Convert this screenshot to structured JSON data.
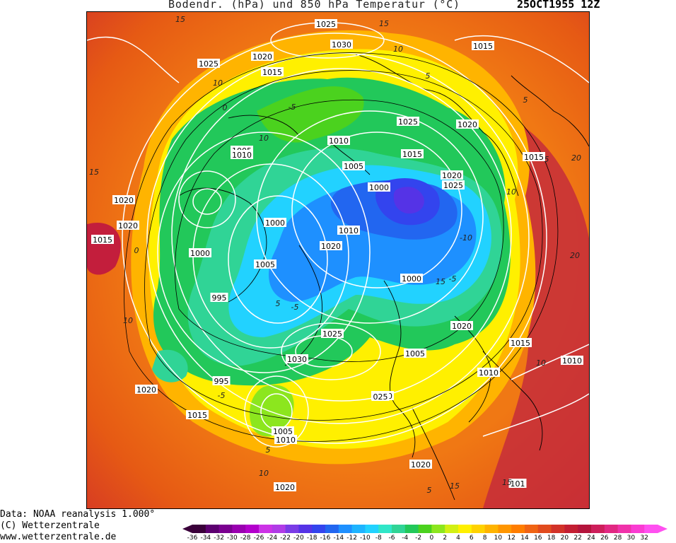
{
  "header": {
    "title": "Bodendr. (hPa) und 850 hPa Temperatur (°C)",
    "date": "25OCT1955 12Z"
  },
  "credits": {
    "data_line": "Data: NOAA reanalysis 1.000°",
    "copyright": "(C) Wetterzentrale",
    "website": "www.wetterzentrale.de"
  },
  "legend": {
    "unit": "°C",
    "values": [
      -36,
      -34,
      -32,
      -30,
      -28,
      -26,
      -24,
      -22,
      -20,
      -18,
      -16,
      -14,
      -12,
      -10,
      -8,
      -6,
      -4,
      -2,
      0,
      2,
      4,
      6,
      8,
      10,
      12,
      14,
      16,
      18,
      20,
      22,
      24,
      26,
      28,
      30,
      32
    ],
    "colors": [
      "#3a003a",
      "#5c0070",
      "#7a0090",
      "#9900b0",
      "#b300cc",
      "#cc33e6",
      "#b03ce6",
      "#7a3ce6",
      "#5533e6",
      "#3344ee",
      "#2266f0",
      "#1e90ff",
      "#1eb4ff",
      "#22d2ff",
      "#30e6c8",
      "#30d496",
      "#22c85a",
      "#4bd21e",
      "#8ce61e",
      "#d2f014",
      "#fff000",
      "#ffd200",
      "#ffb400",
      "#ff9600",
      "#ff7d00",
      "#f06414",
      "#e14b1e",
      "#d23228",
      "#c31e32",
      "#b4143c",
      "#cd1e5a",
      "#e12882",
      "#f032aa",
      "#fa3cd2",
      "#ff50f0"
    ]
  },
  "isobar_labels": [
    "1025",
    "1030",
    "1015",
    "1020",
    "1025",
    "1015",
    "1025",
    "1020",
    "1010",
    "1005",
    "1010",
    "1015",
    "1005",
    "1020",
    "1025",
    "1015",
    "1000",
    "1020",
    "1020",
    "1015",
    "1000",
    "1010",
    "1020",
    "1005",
    "1000",
    "1000",
    "995",
    "1025",
    "1030",
    "1005",
    "1020",
    "1020",
    "1015",
    "1010",
    "1010",
    "995",
    "1020",
    "1015",
    "1005",
    "1010",
    "025",
    "1020",
    "1020",
    "101"
  ],
  "isotherm_labels": [
    "15",
    "15",
    "10",
    "5",
    "10",
    "0",
    "-5",
    "10",
    "5",
    "5",
    "15",
    "20",
    "10",
    "-10",
    "20",
    "0",
    "-5",
    "-5",
    "10",
    "5",
    "15",
    "-5",
    "5",
    "5",
    "10",
    "15",
    "15",
    "10"
  ]
}
